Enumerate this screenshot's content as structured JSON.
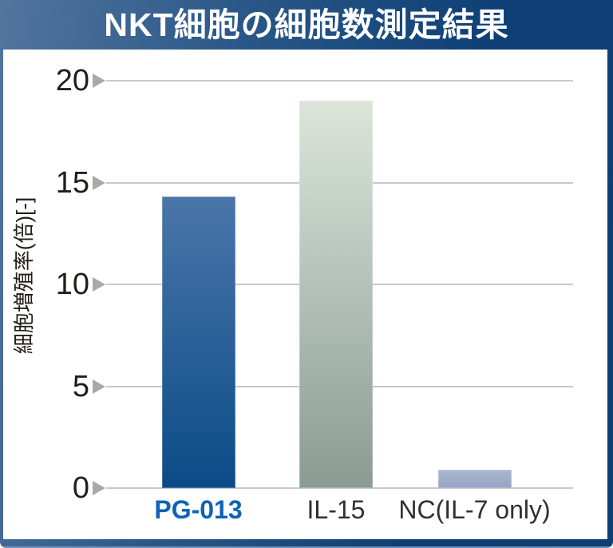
{
  "title": "NKT細胞の細胞数測定結果",
  "chart_data": {
    "type": "bar",
    "title": "NKT細胞の細胞数測定結果",
    "categories": [
      "PG-013",
      "IL-15",
      "NC(IL-7 only)"
    ],
    "values": [
      14.3,
      19.0,
      0.9
    ],
    "xlabel": "",
    "ylabel": "細胞増殖率(倍)[-]",
    "ylim": [
      0,
      20
    ],
    "yticks": [
      0,
      5,
      10,
      15,
      20
    ],
    "grid": true,
    "legend": "none",
    "bar_colors": [
      {
        "top": "#4a76a9",
        "bottom": "#0b4b87"
      },
      {
        "top": "#dbe5da",
        "bottom": "#8a9b94"
      },
      {
        "top": "#abb7d0",
        "bottom": "#96a3c2"
      }
    ],
    "category_label_colors": [
      "#0f63b5",
      "#332f2e",
      "#332f2e"
    ],
    "category_label_bold": [
      true,
      false,
      false
    ]
  },
  "colors": {
    "header_gradient_start": "#52759f",
    "header_gradient_end": "#0d3f74",
    "panel_background": "#ffffff",
    "gridline": "#c9c9c9",
    "tick_arrow": "#a9a9a9",
    "tick_text": "#221e1b",
    "title_text": "#ffffff",
    "accent_blue": "#0f63b5"
  }
}
